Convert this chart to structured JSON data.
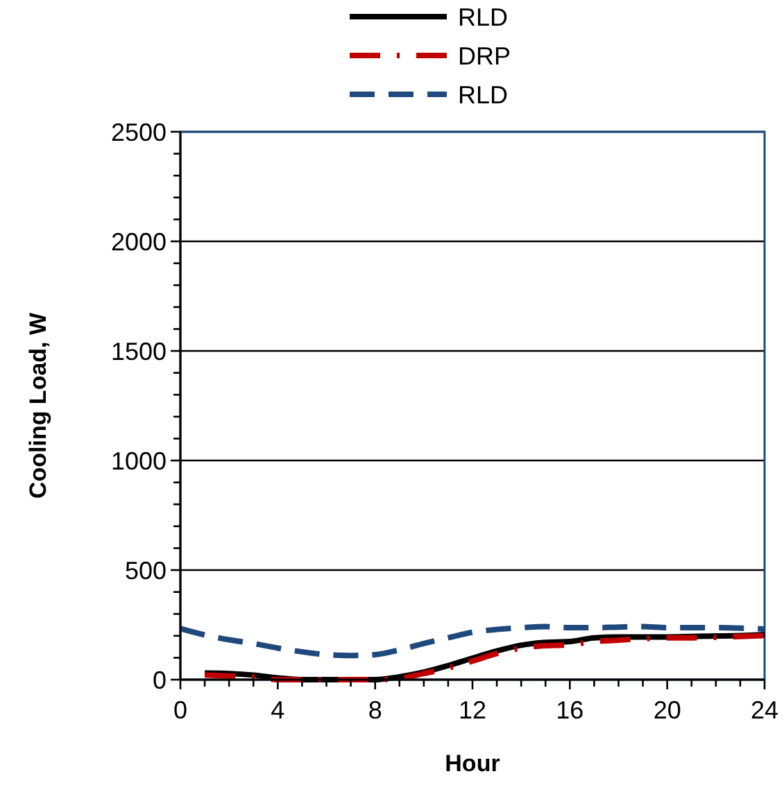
{
  "chart_data": {
    "type": "line",
    "xlabel": "Hour",
    "ylabel": "Cooling Load, W",
    "xlim": [
      0,
      24
    ],
    "ylim": [
      0,
      2500
    ],
    "xticks": [
      0,
      {
        "value": 1,
        "label": null
      },
      {
        "value": 2,
        "label": null
      },
      {
        "value": 3,
        "label": null
      },
      4,
      {
        "value": 5,
        "label": null
      },
      {
        "value": 6,
        "label": null
      },
      {
        "value": 7,
        "label": null
      },
      8,
      {
        "value": 9,
        "label": null
      },
      {
        "value": 10,
        "label": null
      },
      {
        "value": 11,
        "label": null
      },
      12,
      {
        "value": 13,
        "label": null
      },
      {
        "value": 14,
        "label": null
      },
      {
        "value": 15,
        "label": null
      },
      16,
      {
        "value": 17,
        "label": null
      },
      {
        "value": 18,
        "label": null
      },
      {
        "value": 19,
        "label": null
      },
      20,
      {
        "value": 21,
        "label": null
      },
      {
        "value": 22,
        "label": null
      },
      {
        "value": 23,
        "label": null
      },
      24
    ],
    "yticks": [
      0,
      {
        "value": 100,
        "label": null
      },
      {
        "value": 200,
        "label": null
      },
      {
        "value": 300,
        "label": null
      },
      {
        "value": 400,
        "label": null
      },
      500,
      {
        "value": 600,
        "label": null
      },
      {
        "value": 700,
        "label": null
      },
      {
        "value": 800,
        "label": null
      },
      {
        "value": 900,
        "label": null
      },
      1000,
      {
        "value": 1100,
        "label": null
      },
      {
        "value": 1200,
        "label": null
      },
      {
        "value": 1300,
        "label": null
      },
      {
        "value": 1400,
        "label": null
      },
      1500,
      {
        "value": 1600,
        "label": null
      },
      {
        "value": 1700,
        "label": null
      },
      {
        "value": 1800,
        "label": null
      },
      {
        "value": 1900,
        "label": null
      },
      2000,
      {
        "value": 2100,
        "label": null
      },
      {
        "value": 2200,
        "label": null
      },
      {
        "value": 2300,
        "label": null
      },
      {
        "value": 2400,
        "label": null
      },
      2500
    ],
    "grid": "y",
    "legend": "top",
    "marker": "none",
    "series": [
      {
        "name": "RLD",
        "color": "#000000",
        "line_style": "solid",
        "x": [
          1,
          2,
          3,
          4,
          5,
          6,
          7,
          8,
          9,
          10,
          11,
          12,
          13,
          14,
          15,
          16,
          17,
          18,
          19,
          20,
          21,
          22,
          23,
          24
        ],
        "values": [
          30,
          28,
          21,
          8,
          0,
          0,
          0,
          0,
          13,
          34,
          64,
          98,
          131,
          157,
          170,
          174,
          191,
          195,
          195,
          195,
          197,
          199,
          201,
          206
        ]
      },
      {
        "name": "DRP",
        "color": "#c00000",
        "line_style": "dashdot",
        "x": [
          1,
          2,
          3,
          4,
          5,
          6,
          7,
          8,
          9,
          10,
          11,
          12,
          13,
          14,
          15,
          16,
          17,
          18,
          19,
          20,
          21,
          22,
          23,
          24
        ],
        "values": [
          21,
          17,
          13,
          0,
          0,
          0,
          0,
          0,
          6,
          28,
          53,
          85,
          119,
          144,
          155,
          159,
          174,
          180,
          187,
          191,
          191,
          193,
          197,
          201
        ]
      },
      {
        "name": "RLD",
        "color": "#1f497d",
        "line_style": "dashed",
        "x": [
          0,
          1,
          2,
          3,
          4,
          5,
          6,
          7,
          8,
          9,
          10,
          11,
          12,
          13,
          14,
          15,
          16,
          17,
          18,
          19,
          20,
          21,
          22,
          23,
          24
        ],
        "values": [
          233,
          204,
          182,
          165,
          144,
          127,
          114,
          110,
          114,
          136,
          165,
          191,
          216,
          229,
          237,
          242,
          237,
          237,
          240,
          242,
          237,
          237,
          237,
          235,
          231
        ]
      }
    ]
  }
}
